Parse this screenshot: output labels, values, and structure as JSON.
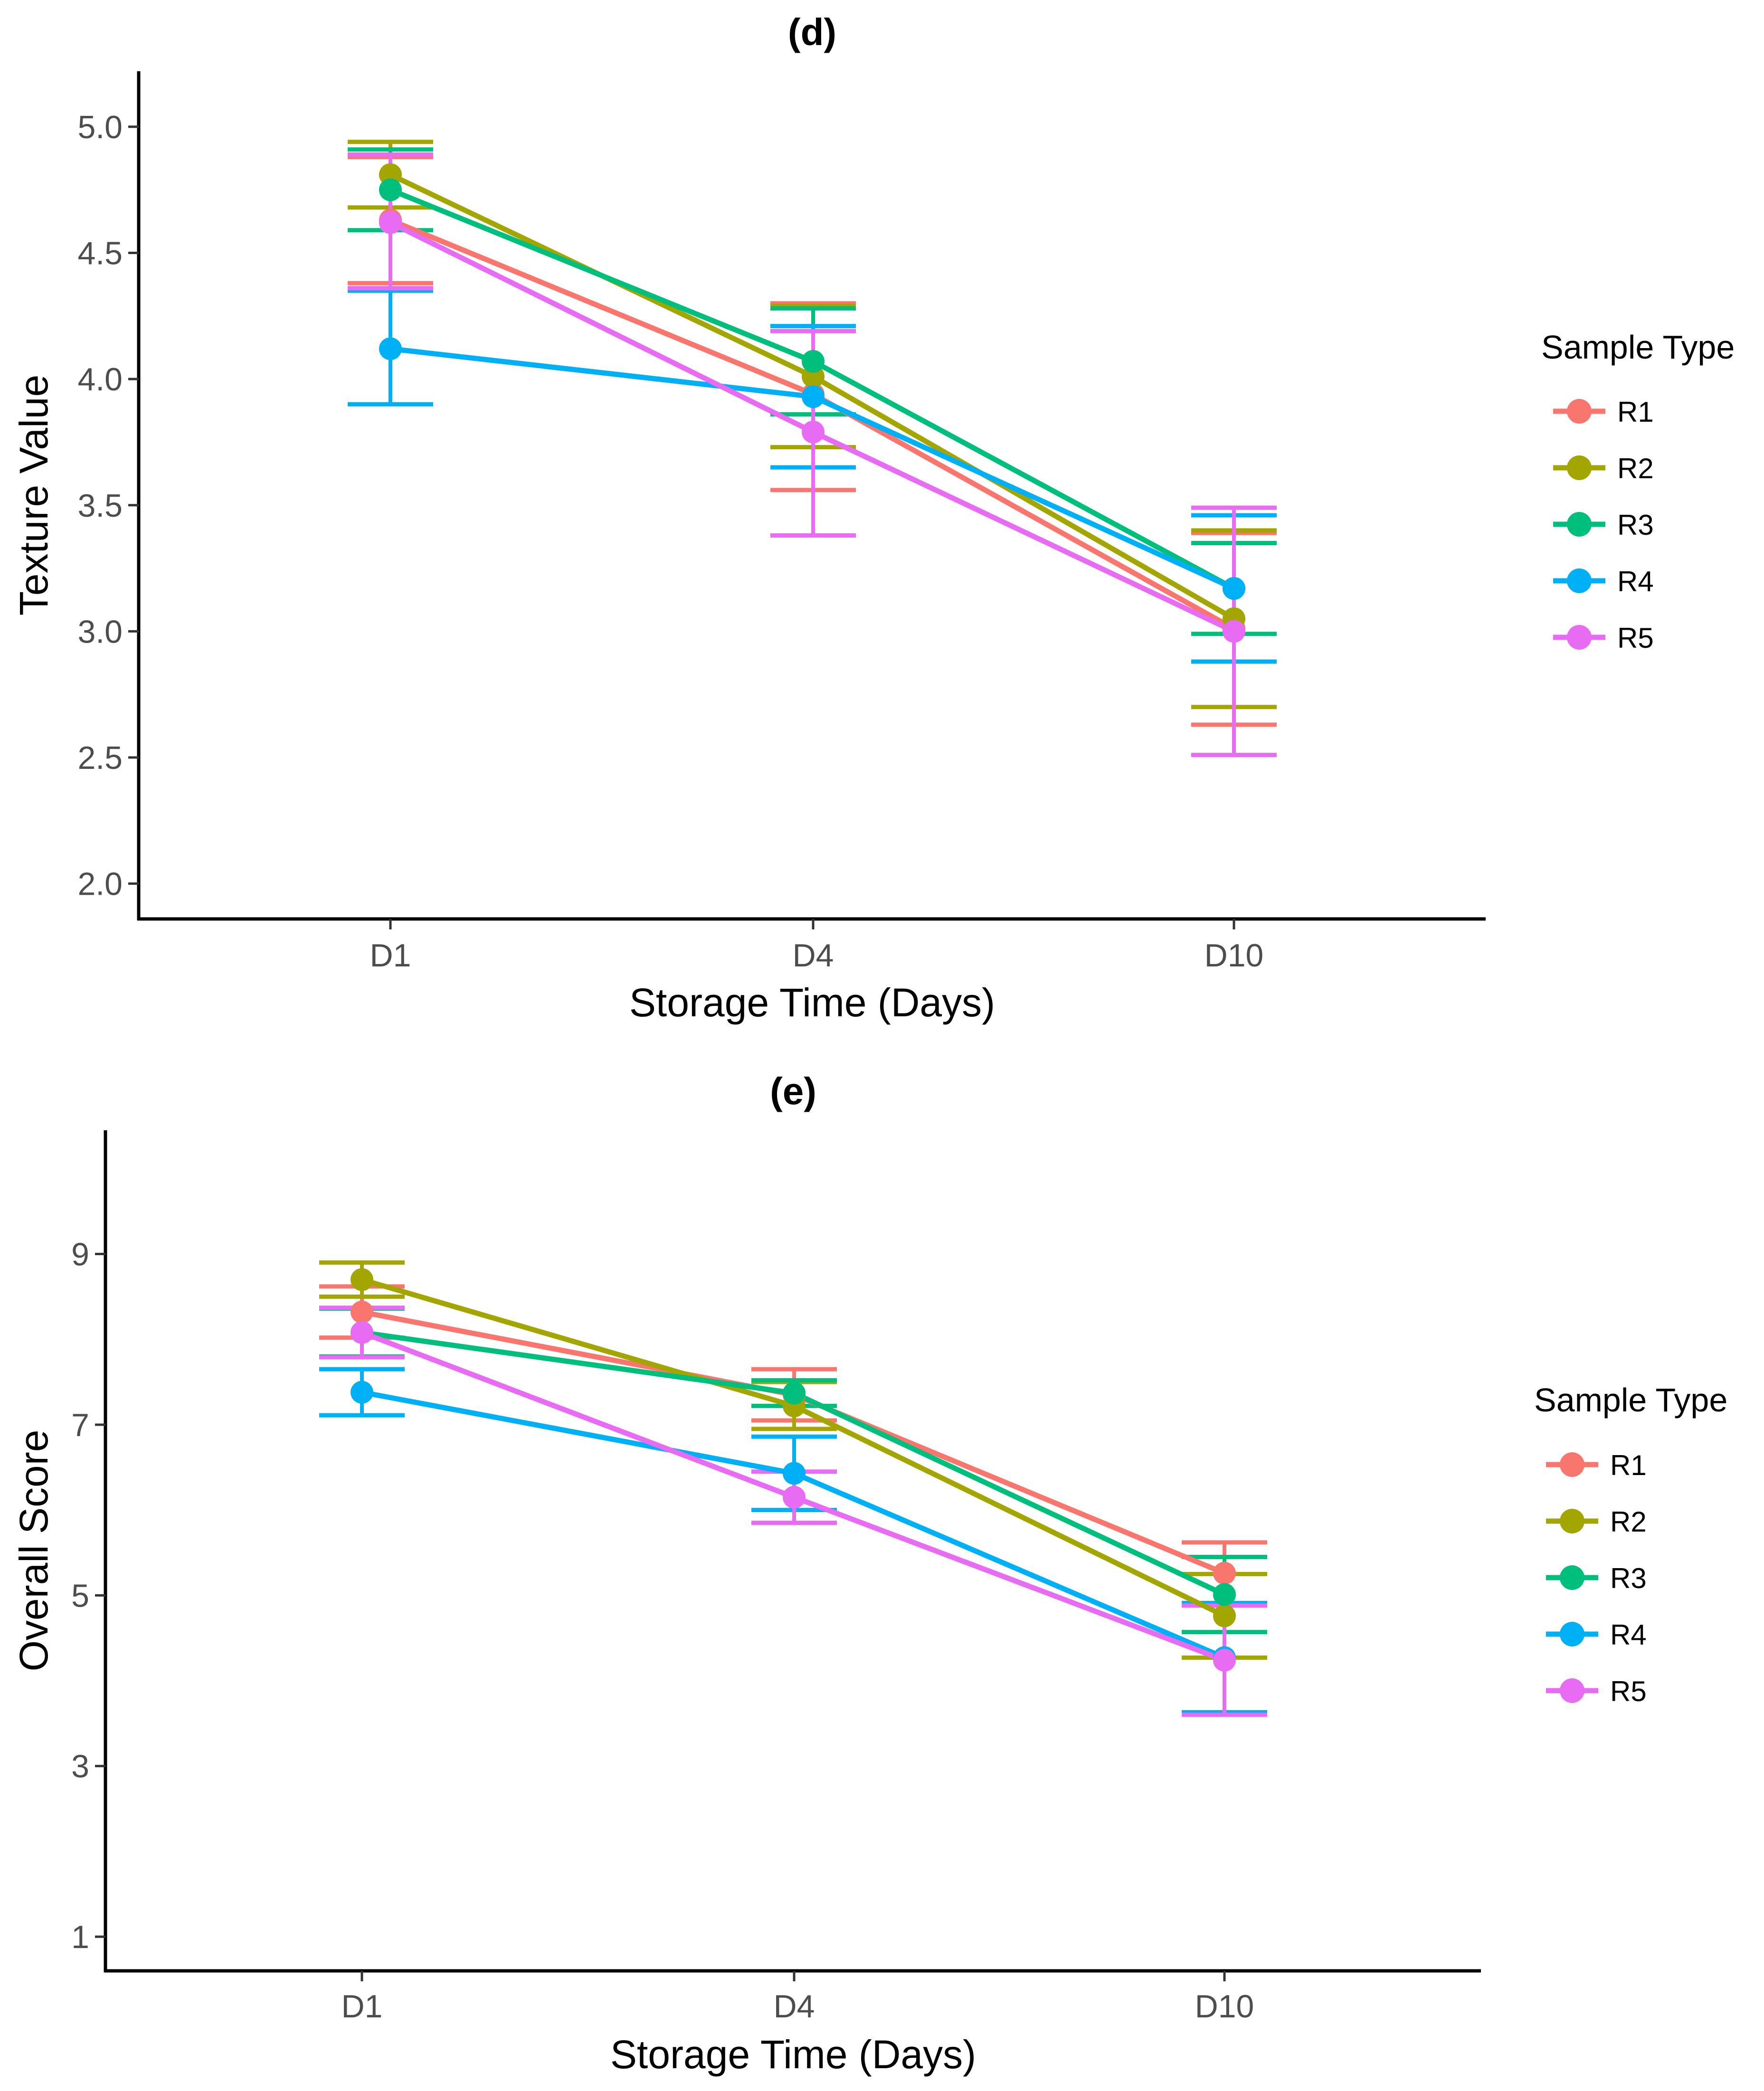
{
  "chart_data": [
    {
      "type": "line",
      "title": "(d)",
      "xlabel": "Storage Time (Days)",
      "ylabel": "Texture Value",
      "categories": [
        "D1",
        "D4",
        "D10"
      ],
      "ylim": [
        1.86,
        5.22
      ],
      "yticks": [
        "2.0",
        "2.5",
        "3.0",
        "3.5",
        "4.0",
        "4.5",
        "5.0"
      ],
      "grid": false,
      "error_bars": true,
      "legend": {
        "title": "Sample Type",
        "position": "right"
      },
      "series": [
        {
          "name": "R1",
          "color": "#F8766D",
          "values": [
            4.63,
            3.94,
            3.01
          ],
          "lower": [
            4.38,
            3.56,
            2.63
          ],
          "upper": [
            4.88,
            4.3,
            3.39
          ]
        },
        {
          "name": "R2",
          "color": "#A3A500",
          "values": [
            4.81,
            4.01,
            3.05
          ],
          "lower": [
            4.68,
            3.73,
            2.7
          ],
          "upper": [
            4.94,
            4.29,
            3.4
          ]
        },
        {
          "name": "R3",
          "color": "#00BF7D",
          "values": [
            4.75,
            4.07,
            3.17
          ],
          "lower": [
            4.59,
            3.86,
            2.99
          ],
          "upper": [
            4.91,
            4.28,
            3.35
          ]
        },
        {
          "name": "R4",
          "color": "#00B0F6",
          "values": [
            4.12,
            3.93,
            3.17
          ],
          "lower": [
            3.9,
            3.65,
            2.88
          ],
          "upper": [
            4.35,
            4.21,
            3.46
          ]
        },
        {
          "name": "R5",
          "color": "#E76BF3",
          "values": [
            4.62,
            3.79,
            3.0
          ],
          "lower": [
            4.36,
            3.38,
            2.51
          ],
          "upper": [
            4.89,
            4.19,
            3.49
          ]
        }
      ]
    },
    {
      "type": "line",
      "title": "(e)",
      "xlabel": "Storage Time (Days)",
      "ylabel": "Overall Score",
      "categories": [
        "D1",
        "D4",
        "D10"
      ],
      "ylim": [
        0.6,
        10.45
      ],
      "yticks": [
        "1",
        "3",
        "5",
        "7",
        "9"
      ],
      "grid": false,
      "error_bars": true,
      "legend": {
        "title": "Sample Type",
        "position": "right"
      },
      "series": [
        {
          "name": "R1",
          "color": "#F8766D",
          "values": [
            8.32,
            7.35,
            5.26
          ],
          "lower": [
            8.02,
            7.05,
            4.9
          ],
          "upper": [
            8.62,
            7.65,
            5.62
          ]
        },
        {
          "name": "R2",
          "color": "#A3A500",
          "values": [
            8.7,
            7.22,
            4.76
          ],
          "lower": [
            8.5,
            6.95,
            4.27
          ],
          "upper": [
            8.9,
            7.5,
            5.25
          ]
        },
        {
          "name": "R3",
          "color": "#00BF7D",
          "values": [
            8.08,
            7.37,
            5.01
          ],
          "lower": [
            7.8,
            7.22,
            4.57
          ],
          "upper": [
            8.36,
            7.52,
            5.45
          ]
        },
        {
          "name": "R4",
          "color": "#00B0F6",
          "values": [
            7.38,
            6.43,
            4.27
          ],
          "lower": [
            7.11,
            6.0,
            3.63
          ],
          "upper": [
            7.65,
            6.86,
            4.91
          ]
        },
        {
          "name": "R5",
          "color": "#E76BF3",
          "values": [
            8.08,
            6.15,
            4.24
          ],
          "lower": [
            7.79,
            5.85,
            3.6
          ],
          "upper": [
            8.37,
            6.45,
            4.88
          ]
        }
      ]
    }
  ]
}
